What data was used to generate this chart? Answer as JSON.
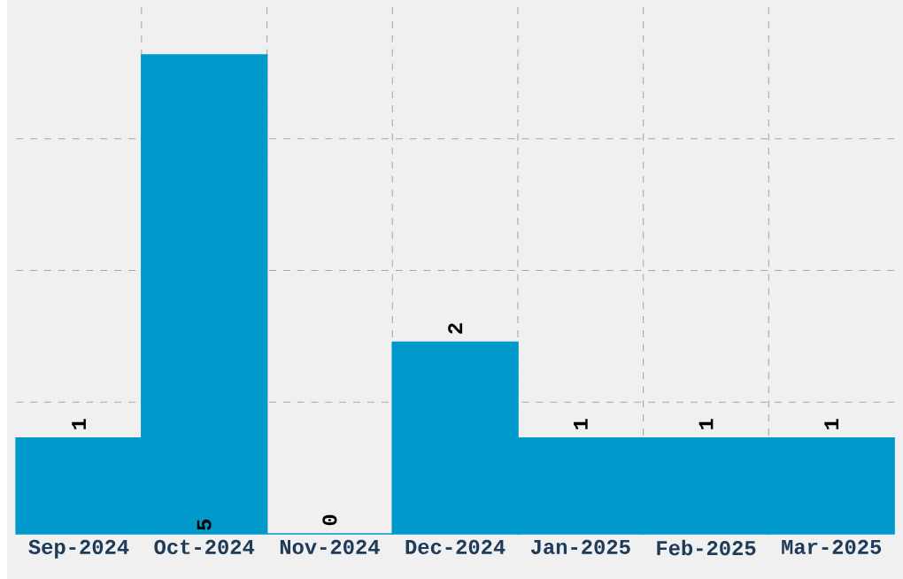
{
  "chart_data": {
    "type": "bar",
    "categories": [
      "Sep-2024",
      "Oct-2024",
      "Nov-2024",
      "Dec-2024",
      "Jan-2025",
      "Feb-2025",
      "Mar-2025"
    ],
    "values": [
      1,
      5,
      0,
      2,
      1,
      1,
      1
    ],
    "color": "#0099cc",
    "ylim": [
      0,
      5.5
    ],
    "yticks": [
      {
        "value": 1.375,
        "label": null
      },
      {
        "value": 2.75,
        "label": null
      },
      {
        "value": 4.125,
        "label": null
      }
    ],
    "tick_labels": "x",
    "grid": true,
    "data_labels": true
  }
}
